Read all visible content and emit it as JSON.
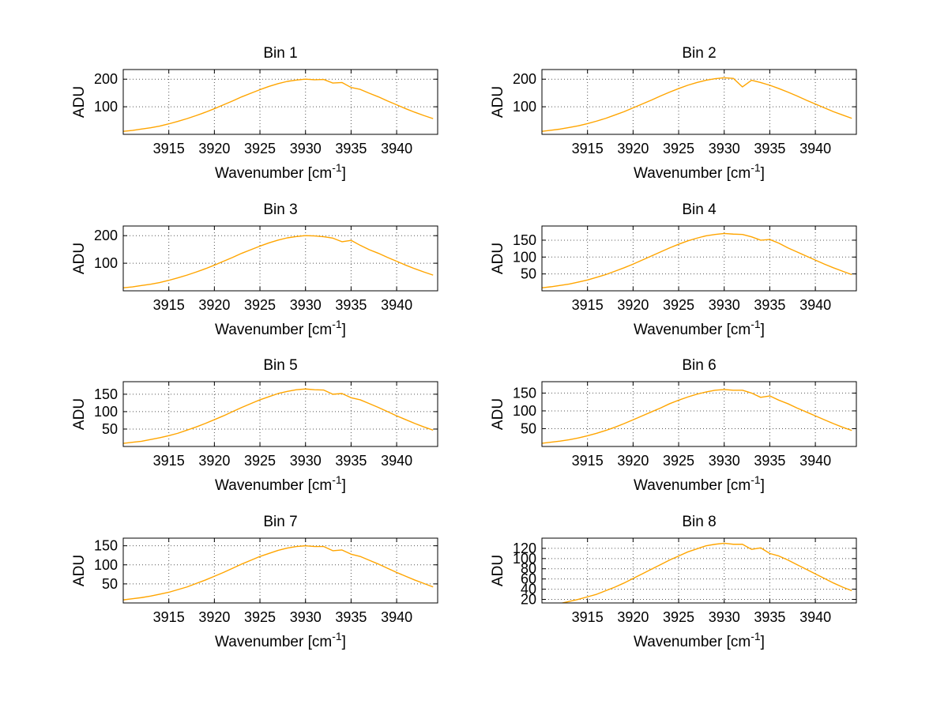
{
  "figure": {
    "background": "#ffffff",
    "description": "4x2 grid of spectrum subplots"
  },
  "chart_data": {
    "type": "line",
    "layout": "4 rows x 2 columns subplots",
    "grid": "dotted",
    "legend": "none",
    "line_color": "#FFA500",
    "axis_color": "#000000",
    "xlabel_main": "Wavenumber [cm",
    "xlabel_sup": "-1",
    "xlabel_end": "]",
    "ylabel": "ADU",
    "xticks": [
      3915,
      3920,
      3925,
      3930,
      3935,
      3940
    ],
    "xlim": [
      3910,
      3944.5
    ],
    "x": [
      3910,
      3911,
      3912,
      3913,
      3914,
      3915,
      3916,
      3917,
      3918,
      3919,
      3920,
      3921,
      3922,
      3923,
      3924,
      3925,
      3926,
      3927,
      3928,
      3929,
      3930,
      3931,
      3932,
      3933,
      3934,
      3935,
      3936,
      3937,
      3938,
      3939,
      3940,
      3941,
      3942,
      3943,
      3944
    ],
    "subplots": [
      {
        "title": "Bin 1",
        "yticks": [
          100,
          200
        ],
        "ylim": [
          0,
          235
        ],
        "y": [
          11,
          14,
          19,
          24,
          30,
          38,
          47,
          57,
          68,
          80,
          93,
          107,
          121,
          136,
          149,
          162,
          174,
          184,
          192,
          197,
          200,
          198,
          199,
          186,
          188,
          170,
          163,
          149,
          136,
          121,
          107,
          93,
          80,
          68,
          57
        ]
      },
      {
        "title": "Bin 2",
        "yticks": [
          100,
          200
        ],
        "ylim": [
          0,
          235
        ],
        "y": [
          11,
          15,
          19,
          25,
          31,
          39,
          48,
          58,
          70,
          82,
          96,
          110,
          124,
          139,
          153,
          166,
          178,
          188,
          196,
          202,
          205,
          203,
          172,
          196,
          188,
          178,
          166,
          153,
          139,
          124,
          110,
          96,
          82,
          70,
          58
        ]
      },
      {
        "title": "Bin 3",
        "yticks": [
          100,
          200
        ],
        "ylim": [
          0,
          235
        ],
        "y": [
          11,
          14,
          19,
          24,
          30,
          38,
          47,
          57,
          68,
          80,
          93,
          107,
          121,
          136,
          149,
          162,
          174,
          184,
          192,
          197,
          200,
          199,
          196,
          191,
          178,
          183,
          165,
          149,
          136,
          121,
          107,
          93,
          80,
          68,
          57
        ]
      },
      {
        "title": "Bin 4",
        "yticks": [
          50,
          100,
          150
        ],
        "ylim": [
          0,
          192
        ],
        "y": [
          9,
          12,
          16,
          20,
          26,
          32,
          40,
          48,
          58,
          68,
          79,
          91,
          103,
          115,
          127,
          138,
          148,
          156,
          163,
          167,
          170,
          168,
          167,
          160,
          150,
          152,
          141,
          127,
          115,
          103,
          91,
          79,
          68,
          58,
          48
        ]
      },
      {
        "title": "Bin 5",
        "yticks": [
          50,
          100,
          150
        ],
        "ylim": [
          0,
          186
        ],
        "y": [
          9,
          12,
          15,
          20,
          25,
          31,
          38,
          47,
          56,
          66,
          77,
          88,
          100,
          112,
          123,
          134,
          143,
          152,
          158,
          163,
          165,
          163,
          162,
          150,
          152,
          140,
          134,
          123,
          112,
          100,
          88,
          77,
          66,
          56,
          47
        ]
      },
      {
        "title": "Bin 6",
        "yticks": [
          50,
          100,
          150
        ],
        "ylim": [
          0,
          182
        ],
        "y": [
          9,
          12,
          15,
          19,
          24,
          30,
          37,
          45,
          54,
          64,
          75,
          86,
          97,
          108,
          120,
          130,
          139,
          147,
          153,
          158,
          160,
          158,
          158,
          150,
          138,
          142,
          130,
          120,
          108,
          97,
          86,
          75,
          64,
          54,
          45
        ]
      },
      {
        "title": "Bin 7",
        "yticks": [
          50,
          100,
          150
        ],
        "ylim": [
          0,
          170
        ],
        "y": [
          8,
          11,
          14,
          18,
          23,
          28,
          35,
          42,
          51,
          60,
          70,
          80,
          91,
          102,
          112,
          122,
          130,
          138,
          144,
          148,
          150,
          148,
          148,
          137,
          139,
          128,
          122,
          112,
          102,
          91,
          80,
          70,
          60,
          51,
          42
        ]
      },
      {
        "title": "Bin 8",
        "yticks": [
          20,
          40,
          60,
          80,
          100,
          120
        ],
        "ylim": [
          13,
          140
        ],
        "y": [
          7,
          9,
          12,
          16,
          20,
          25,
          30,
          37,
          44,
          52,
          61,
          70,
          79,
          88,
          97,
          105,
          113,
          119,
          125,
          128,
          130,
          128,
          128,
          118,
          121,
          110,
          105,
          97,
          88,
          79,
          70,
          61,
          52,
          44,
          37
        ]
      }
    ]
  }
}
